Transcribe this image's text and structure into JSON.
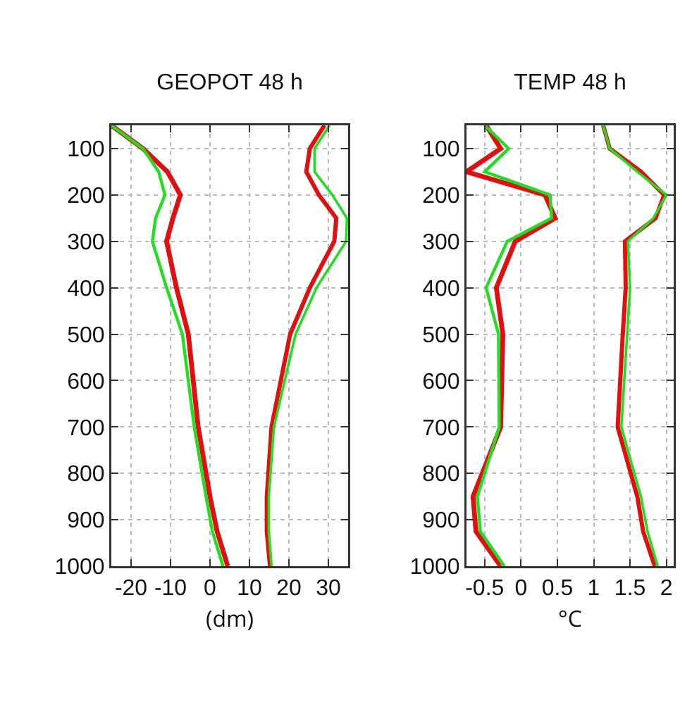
{
  "chart_data": [
    {
      "type": "line",
      "title": "GEOPOT 48 h",
      "xlabel": "(dm)",
      "xlim": [
        -25,
        35
      ],
      "xticks": [
        -20,
        -10,
        0,
        10,
        20,
        30
      ],
      "ylim": [
        1000,
        50
      ],
      "yticks": [
        100,
        200,
        300,
        400,
        500,
        600,
        700,
        800,
        900,
        1000
      ],
      "grid": true,
      "line_style": "solid",
      "marker": "none",
      "series": [
        {
          "color": "#e01010",
          "x": [
            -25,
            -17,
            -10.8,
            -7.5,
            -9.4,
            -11,
            -8.5,
            -5.5,
            -3,
            0,
            1.8,
            4.5
          ],
          "values": [
            50,
            100,
            150,
            200,
            250,
            300,
            400,
            500,
            700,
            850,
            925,
            1000
          ]
        },
        {
          "color": "#22dd22",
          "x": [
            -25,
            -17,
            -13,
            -11.4,
            -13.8,
            -14.6,
            -11,
            -7,
            -4,
            -1,
            0.6,
            3.3
          ],
          "values": [
            50,
            100,
            150,
            200,
            250,
            300,
            400,
            500,
            700,
            850,
            925,
            1000
          ]
        },
        {
          "color": "#e01010",
          "x": [
            29,
            25.3,
            24.4,
            27.6,
            32,
            31.5,
            25.3,
            20.3,
            15.6,
            14.4,
            14.4,
            15.2
          ],
          "values": [
            50,
            100,
            150,
            200,
            250,
            300,
            400,
            500,
            700,
            850,
            925,
            1000
          ]
        },
        {
          "color": "#22dd22",
          "x": [
            30.3,
            26.5,
            26.5,
            31,
            34.7,
            34.5,
            27,
            21.7,
            16.2,
            14.9,
            14.9,
            15.6
          ],
          "values": [
            50,
            100,
            150,
            200,
            250,
            300,
            400,
            500,
            700,
            850,
            925,
            1000
          ]
        }
      ]
    },
    {
      "type": "line",
      "title": "TEMP 48 h",
      "xlabel": "°C",
      "xlim": [
        -0.75,
        2.1
      ],
      "xticks": [
        -0.5,
        0,
        0.5,
        1,
        1.5,
        2
      ],
      "ylim": [
        1000,
        50
      ],
      "yticks": [
        100,
        200,
        300,
        400,
        500,
        600,
        700,
        800,
        900,
        1000
      ],
      "grid": true,
      "line_style": "solid",
      "marker": "none",
      "series": [
        {
          "color": "#e01010",
          "x": [
            -0.48,
            -0.28,
            -0.75,
            0.33,
            0.47,
            -0.08,
            -0.34,
            -0.25,
            -0.28,
            -0.66,
            -0.62,
            -0.28
          ],
          "values": [
            50,
            100,
            150,
            200,
            250,
            300,
            400,
            500,
            700,
            850,
            925,
            1000
          ]
        },
        {
          "color": "#22dd22",
          "x": [
            -0.5,
            -0.17,
            -0.5,
            0.4,
            0.42,
            -0.19,
            -0.48,
            -0.31,
            -0.3,
            -0.6,
            -0.56,
            -0.23
          ],
          "values": [
            50,
            100,
            150,
            200,
            250,
            300,
            400,
            500,
            700,
            850,
            925,
            1000
          ]
        },
        {
          "color": "#e01010",
          "x": [
            1.13,
            1.22,
            1.65,
            1.97,
            1.85,
            1.43,
            1.44,
            1.4,
            1.33,
            1.6,
            1.68,
            1.84
          ],
          "values": [
            50,
            100,
            150,
            200,
            250,
            300,
            400,
            500,
            700,
            850,
            925,
            1000
          ]
        },
        {
          "color": "#22dd22",
          "x": [
            1.13,
            1.22,
            1.6,
            2.0,
            1.82,
            1.47,
            1.5,
            1.46,
            1.38,
            1.65,
            1.74,
            1.88
          ],
          "values": [
            50,
            100,
            150,
            200,
            250,
            300,
            400,
            500,
            700,
            850,
            925,
            1000
          ]
        }
      ]
    }
  ]
}
